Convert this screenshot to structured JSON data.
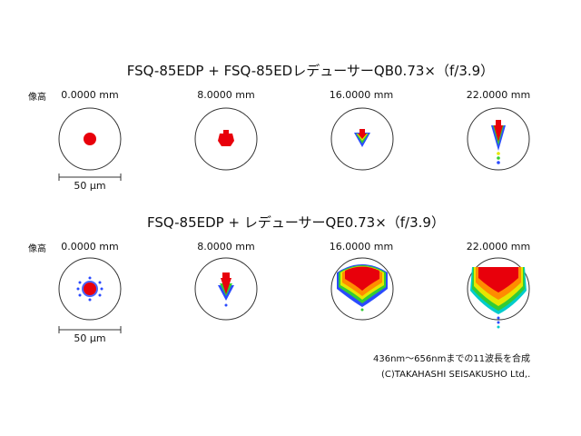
{
  "row1": {
    "title": "FSQ-85EDP + FSQ-85EDレデューサーQB0.73×（f/3.9）",
    "image_height_label": "像高",
    "fields": [
      "0.0000 mm",
      "8.0000 mm",
      "16.0000 mm",
      "22.0000 mm"
    ],
    "scale_label": "50 μm"
  },
  "row2": {
    "title": "FSQ-85EDP + レデューサーQE0.73×（f/3.9）",
    "image_height_label": "像高",
    "fields": [
      "0.0000 mm",
      "8.0000 mm",
      "16.0000 mm",
      "22.0000 mm"
    ],
    "scale_label": "50 μm"
  },
  "footer": {
    "wavelength_note": "436nm～656nmまでの11波長を合成",
    "copyright": "(C)TAKAHASHI SEISAKUSHO Ltd,."
  },
  "colors": {
    "circle": "#333333",
    "red": "#e8000b",
    "orange": "#ff8c00",
    "yellow": "#e6e600",
    "green": "#33cc33",
    "cyan": "#00cccc",
    "blue": "#2a4bff"
  }
}
